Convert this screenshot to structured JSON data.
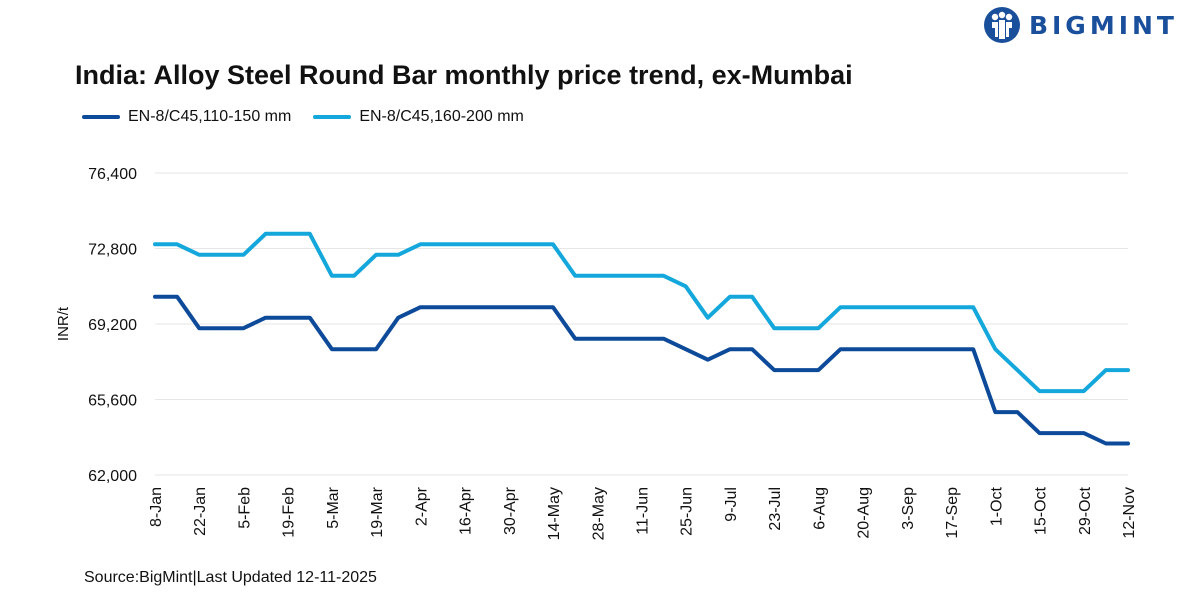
{
  "brand": {
    "name": "BIGMINT",
    "color": "#1a4f9c"
  },
  "title": "India: Alloy Steel Round Bar monthly price trend, ex-Mumbai",
  "source": "Source:BigMint|Last Updated 12-11-2025",
  "chart_data": {
    "type": "line",
    "title": "India: Alloy Steel Round Bar monthly price trend, ex-Mumbai",
    "ylabel": "INR/t",
    "xlabel": "",
    "ylim": [
      62000,
      76400
    ],
    "yticks": [
      "62,000",
      "65,600",
      "69,200",
      "72,800",
      "76,400"
    ],
    "grid": true,
    "legend_position": "top-left",
    "x_tick_labels": [
      "8-Jan",
      "22-Jan",
      "5-Feb",
      "19-Feb",
      "5-Mar",
      "19-Mar",
      "2-Apr",
      "16-Apr",
      "30-Apr",
      "14-May",
      "28-May",
      "11-Jun",
      "25-Jun",
      "9-Jul",
      "23-Jul",
      "6-Aug",
      "20-Aug",
      "3-Sep",
      "17-Sep",
      "1-Oct",
      "15-Oct",
      "29-Oct",
      "12-Nov"
    ],
    "x": [
      "8-Jan",
      "15-Jan",
      "22-Jan",
      "29-Jan",
      "5-Feb",
      "12-Feb",
      "19-Feb",
      "26-Feb",
      "5-Mar",
      "12-Mar",
      "19-Mar",
      "26-Mar",
      "2-Apr",
      "9-Apr",
      "16-Apr",
      "23-Apr",
      "30-Apr",
      "7-May",
      "14-May",
      "21-May",
      "28-May",
      "4-Jun",
      "11-Jun",
      "18-Jun",
      "25-Jun",
      "2-Jul",
      "9-Jul",
      "16-Jul",
      "23-Jul",
      "30-Jul",
      "6-Aug",
      "13-Aug",
      "20-Aug",
      "27-Aug",
      "3-Sep",
      "10-Sep",
      "17-Sep",
      "24-Sep",
      "1-Oct",
      "8-Oct",
      "15-Oct",
      "22-Oct",
      "29-Oct",
      "5-Nov",
      "12-Nov"
    ],
    "series": [
      {
        "name": "EN-8/C45,110-150 mm",
        "color": "#0d4a9a",
        "values": [
          70500,
          70500,
          69000,
          69000,
          69000,
          69500,
          69500,
          69500,
          68000,
          68000,
          68000,
          69500,
          70000,
          70000,
          70000,
          70000,
          70000,
          70000,
          70000,
          68500,
          68500,
          68500,
          68500,
          68500,
          68000,
          67500,
          68000,
          68000,
          67000,
          67000,
          67000,
          68000,
          68000,
          68000,
          68000,
          68000,
          68000,
          68000,
          65000,
          65000,
          64000,
          64000,
          64000,
          63500,
          63500
        ]
      },
      {
        "name": "EN-8/C45,160-200 mm",
        "color": "#14a7dc",
        "values": [
          73000,
          73000,
          72500,
          72500,
          72500,
          73500,
          73500,
          73500,
          71500,
          71500,
          72500,
          72500,
          73000,
          73000,
          73000,
          73000,
          73000,
          73000,
          73000,
          71500,
          71500,
          71500,
          71500,
          71500,
          71000,
          69500,
          70500,
          70500,
          69000,
          69000,
          69000,
          70000,
          70000,
          70000,
          70000,
          70000,
          70000,
          70000,
          68000,
          67000,
          66000,
          66000,
          66000,
          67000,
          67000
        ]
      }
    ]
  }
}
